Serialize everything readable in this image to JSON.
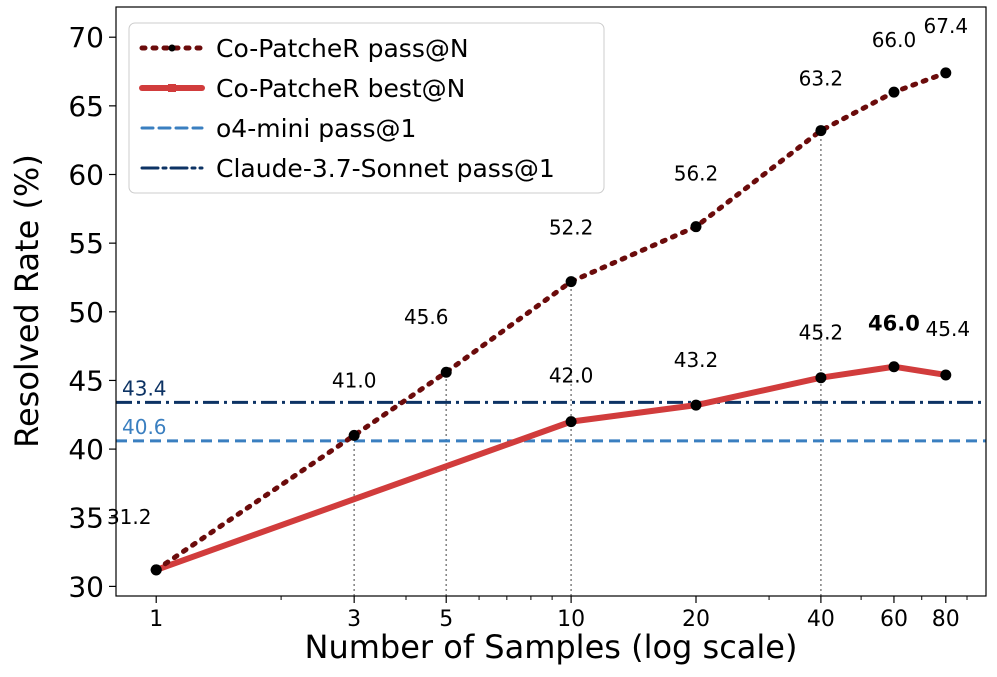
{
  "chart_data": {
    "type": "line",
    "xlabel": "Number of Samples (log scale)",
    "ylabel": "Resolved Rate (%)",
    "xscale": "log",
    "x": [
      1,
      3,
      5,
      10,
      20,
      40,
      60,
      80
    ],
    "xtick_labels": [
      "1",
      "3",
      "5",
      "10",
      "20",
      "40",
      "60",
      "80"
    ],
    "xlim": [
      0.8,
      100
    ],
    "ylim": [
      29.3,
      72.2
    ],
    "yticks": [
      30,
      35,
      40,
      45,
      50,
      55,
      60,
      65,
      70
    ],
    "ytick_labels": [
      "30",
      "35",
      "40",
      "45",
      "50",
      "55",
      "60",
      "65",
      "70"
    ],
    "series": [
      {
        "name": "Co-PatcheR pass@N",
        "style": "dotted",
        "color": "#6b0b0b",
        "x": [
          1,
          3,
          5,
          10,
          20,
          40,
          60,
          80
        ],
        "values": [
          31.2,
          41.0,
          45.6,
          52.2,
          56.2,
          63.2,
          66.0,
          67.4
        ],
        "labels": [
          "31.2",
          "41.0",
          "45.6",
          "52.2",
          "56.2",
          "63.2",
          "66.0",
          "67.4"
        ]
      },
      {
        "name": "Co-PatcheR best@N",
        "style": "solid",
        "color": "#d13c3c",
        "x": [
          1,
          10,
          20,
          40,
          60,
          80
        ],
        "values": [
          31.2,
          42.0,
          43.2,
          45.2,
          46.0,
          45.4
        ],
        "labels": [
          "42.0",
          "43.2",
          "45.2",
          "46.0",
          "45.4"
        ],
        "highlight": "46.0"
      }
    ],
    "reference_lines": [
      {
        "name": "o4-mini pass@1",
        "value": 40.6,
        "label": "40.6",
        "style": "dashed",
        "color": "#3a7fc0"
      },
      {
        "name": "Claude-3.7-Sonnet pass@1",
        "value": 43.4,
        "label": "43.4",
        "style": "dashdot",
        "color": "#0d3364"
      }
    ],
    "legend": {
      "position": "top-left",
      "entries": [
        "Co-PatcheR pass@N",
        "Co-PatcheR best@N",
        "o4-mini pass@1",
        "Claude-3.7-Sonnet pass@1"
      ]
    },
    "vertical_guides_at_x": [
      3,
      5,
      10,
      40
    ],
    "marker_color": "#000000"
  }
}
